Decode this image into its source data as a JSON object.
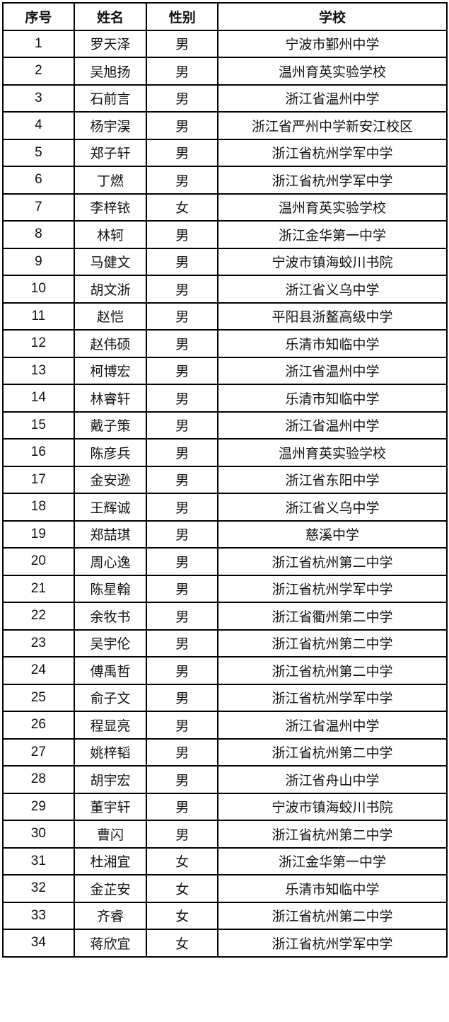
{
  "headers": [
    "序号",
    "姓名",
    "性别",
    "学校"
  ],
  "rows": [
    [
      "1",
      "罗天泽",
      "男",
      "宁波市鄞州中学"
    ],
    [
      "2",
      "吴旭扬",
      "男",
      "温州育英实验学校"
    ],
    [
      "3",
      "石前言",
      "男",
      "浙江省温州中学"
    ],
    [
      "4",
      "杨宇淏",
      "男",
      "浙江省严州中学新安江校区"
    ],
    [
      "5",
      "郑子轩",
      "男",
      "浙江省杭州学军中学"
    ],
    [
      "6",
      "丁燃",
      "男",
      "浙江省杭州学军中学"
    ],
    [
      "7",
      "李梓铱",
      "女",
      "温州育英实验学校"
    ],
    [
      "8",
      "林轲",
      "男",
      "浙江金华第一中学"
    ],
    [
      "9",
      "马健文",
      "男",
      "宁波市镇海蛟川书院"
    ],
    [
      "10",
      "胡文浙",
      "男",
      "浙江省义乌中学"
    ],
    [
      "11",
      "赵恺",
      "男",
      "平阳县浙鳌高级中学"
    ],
    [
      "12",
      "赵伟硕",
      "男",
      "乐清市知临中学"
    ],
    [
      "13",
      "柯博宏",
      "男",
      "浙江省温州中学"
    ],
    [
      "14",
      "林睿轩",
      "男",
      "乐清市知临中学"
    ],
    [
      "15",
      "戴子策",
      "男",
      "浙江省温州中学"
    ],
    [
      "16",
      "陈彦兵",
      "男",
      "温州育英实验学校"
    ],
    [
      "17",
      "金安逊",
      "男",
      "浙江省东阳中学"
    ],
    [
      "18",
      "王辉诚",
      "男",
      "浙江省义乌中学"
    ],
    [
      "19",
      "郑喆琪",
      "男",
      "慈溪中学"
    ],
    [
      "20",
      "周心逸",
      "男",
      "浙江省杭州第二中学"
    ],
    [
      "21",
      "陈星翰",
      "男",
      "浙江省杭州学军中学"
    ],
    [
      "22",
      "余牧书",
      "男",
      "浙江省衢州第二中学"
    ],
    [
      "23",
      "吴宇伦",
      "男",
      "浙江省杭州第二中学"
    ],
    [
      "24",
      "傅禹哲",
      "男",
      "浙江省杭州第二中学"
    ],
    [
      "25",
      "俞子文",
      "男",
      "浙江省杭州学军中学"
    ],
    [
      "26",
      "程显亮",
      "男",
      "浙江省温州中学"
    ],
    [
      "27",
      "姚梓韬",
      "男",
      "浙江省杭州第二中学"
    ],
    [
      "28",
      "胡宇宏",
      "男",
      "浙江省舟山中学"
    ],
    [
      "29",
      "董宇轩",
      "男",
      "宁波市镇海蛟川书院"
    ],
    [
      "30",
      "曹闪",
      "男",
      "浙江省杭州第二中学"
    ],
    [
      "31",
      "杜湘宜",
      "女",
      "浙江金华第一中学"
    ],
    [
      "32",
      "金芷安",
      "女",
      "乐清市知临中学"
    ],
    [
      "33",
      "齐睿",
      "女",
      "浙江省杭州第二中学"
    ],
    [
      "34",
      "蒋欣宜",
      "女",
      "浙江省杭州学军中学"
    ]
  ]
}
